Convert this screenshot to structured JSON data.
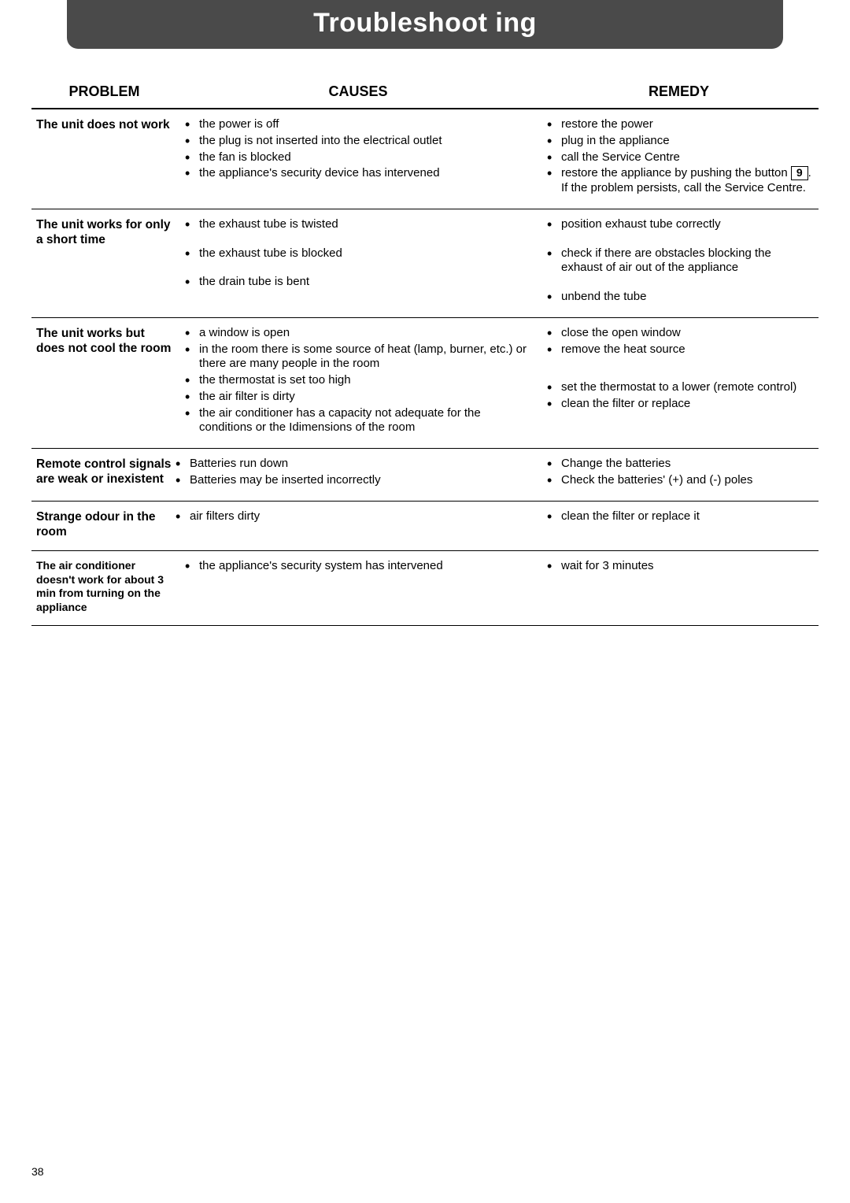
{
  "title": "Troubleshoot ing",
  "headers": {
    "problem": "PROBLEM",
    "causes": "CAUSES",
    "remedy": "REMEDY"
  },
  "rows": [
    {
      "problem": "The unit does not work",
      "causes": [
        "the power is off",
        "the plug is not inserted into the electrical outlet",
        "the fan is blocked",
        "the appliance's security device has interve­ned"
      ],
      "remedy": [
        "restore the power",
        "plug in the appliance",
        "call the Service Centre",
        "restore the appliance by pushing the button {BTN9}. If the problem persists, call the Servi­ce Centre."
      ]
    },
    {
      "problem": "The unit works for only a short time",
      "causes_spaced": [
        "the exhaust tube is twisted",
        "the exhaust tube is blocked",
        "the drain tube is bent"
      ],
      "remedy_spaced": [
        "position exhaust tube correctly",
        "check if there are obstacles blocking the exhaust of air out of the appliance",
        "unbend the tube"
      ]
    },
    {
      "problem": "The unit works but does not cool the room",
      "causes": [
        "a window is open",
        "in the room there is some source of heat (lamp, burner, etc.) or there are many peo­ple in the room",
        "the thermostat is set too high",
        "the air filter is dirty",
        "the air conditioner has a capacity not ade­quate for the conditions or the Idimensions of the room"
      ],
      "remedy": [
        "close the open window",
        "remove the heat source",
        "set the thermostat to a lower (remote control)",
        "clean the filter or replace"
      ],
      "remedy_blank_after": [
        1
      ]
    },
    {
      "problem": "Remote control signals are weak or inexistent",
      "problem_inline_bullets": true,
      "causes": [
        "Batteries run down",
        "Batteries may be inserted incorrectly"
      ],
      "remedy": [
        "Change the batteries",
        "Check the batteries' (+) and (-) poles"
      ]
    },
    {
      "problem": "Strange odour in the room",
      "problem_inline_bullets": true,
      "causes": [
        "air filters dirty"
      ],
      "remedy": [
        "clean the filter or replace it"
      ]
    },
    {
      "problem": "The air conditioner doesn't work for about 3 min from turning on the appliance",
      "problem_small": true,
      "causes": [
        "the appliance's security system has interve­ned"
      ],
      "remedy": [
        "wait for 3 minutes"
      ]
    }
  ],
  "button_label": "9",
  "page_number": "38"
}
